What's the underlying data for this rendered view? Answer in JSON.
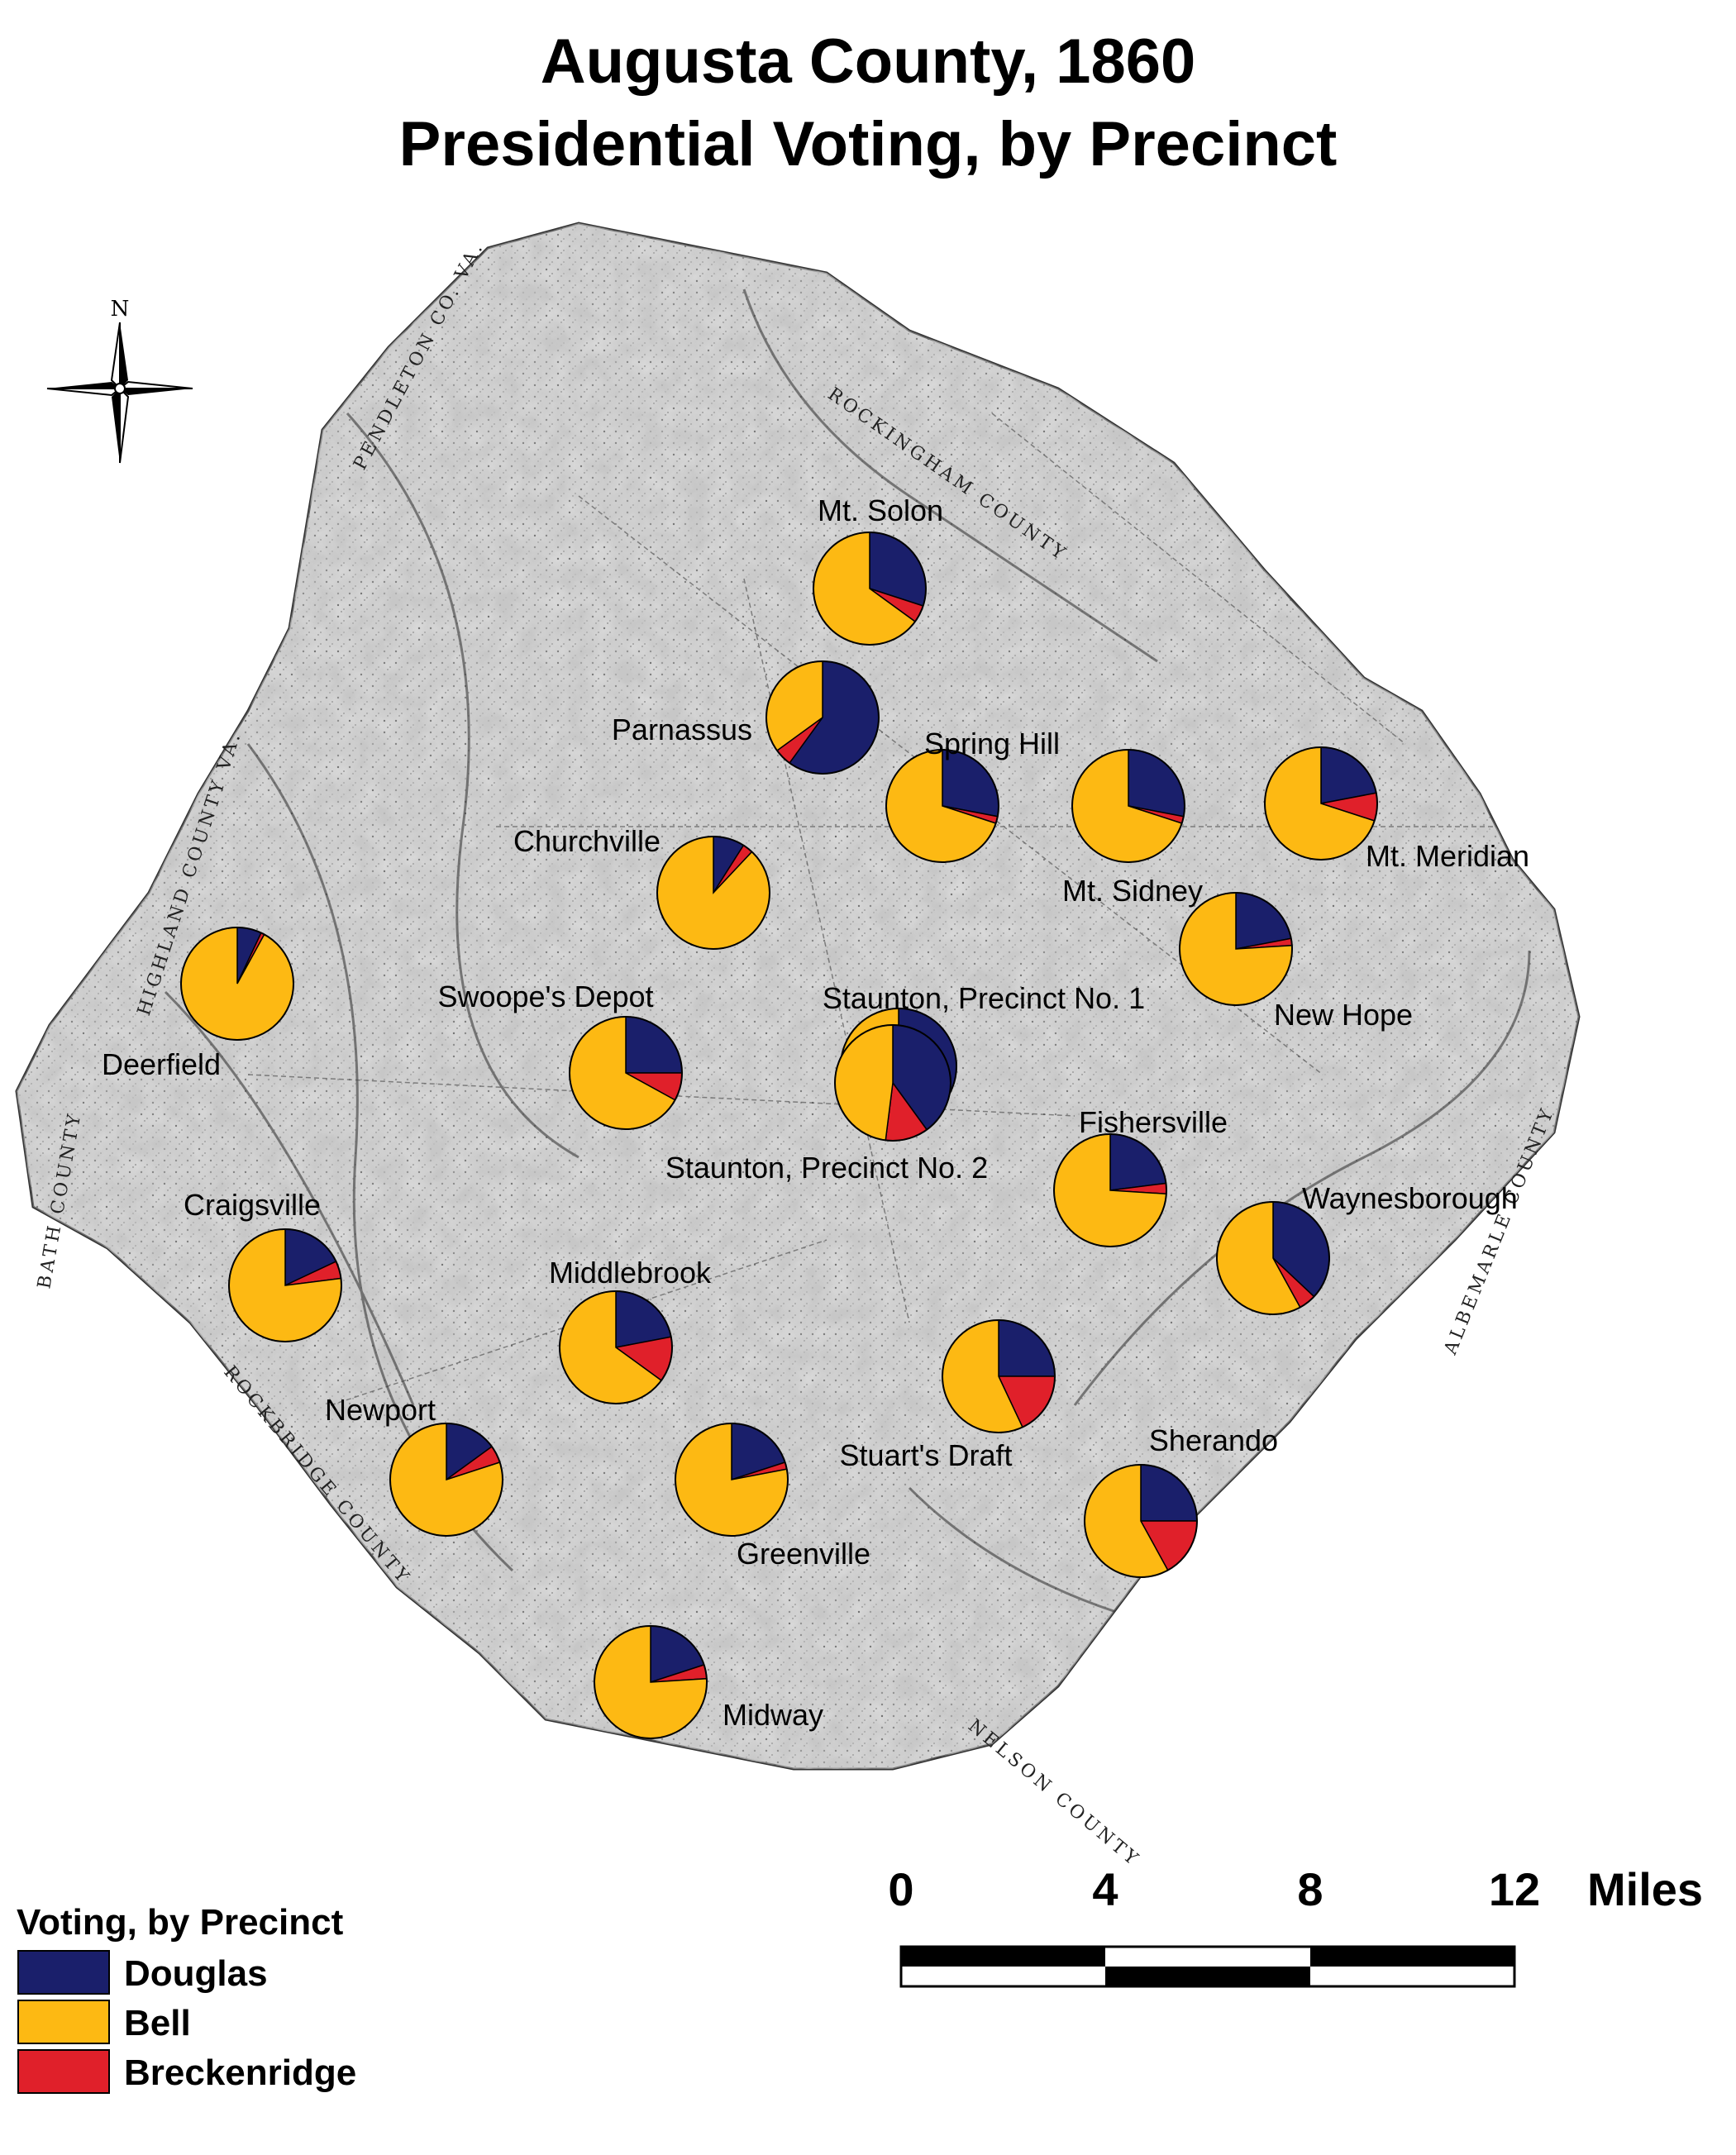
{
  "title": {
    "line1": "Augusta County, 1860",
    "line2": "Presidential Voting, by Precinct"
  },
  "compass": {
    "north_label": "N",
    "icon": "north-arrow-compass-icon"
  },
  "border_labels": {
    "pendleton": "PENDLETON CO. VA.",
    "highland": "HIGHLAND COUNTY VA.",
    "bath": "BATH COUNTY",
    "rockbridge": "ROCKBRIDGE COUNTY",
    "rockingham": "ROCKINGHAM COUNTY",
    "albemarle": "ALBEMARLE COUNTY",
    "nelson": "NELSON COUNTY"
  },
  "colors": {
    "douglas": "#1a1f6b",
    "bell": "#fdb913",
    "breckenridge": "#e0202a",
    "map_background": "#d9d9d9"
  },
  "legend": {
    "title": "Voting, by Precinct",
    "items": [
      {
        "key": "douglas",
        "label": "Douglas"
      },
      {
        "key": "bell",
        "label": "Bell"
      },
      {
        "key": "breckenridge",
        "label": "Breckenridge"
      }
    ]
  },
  "scale_bar": {
    "ticks": [
      "0",
      "4",
      "8",
      "12"
    ],
    "unit": "Miles"
  },
  "precincts": [
    {
      "name": "Mt. Solon",
      "douglas": 0.3,
      "bell": 0.65,
      "breckenridge": 0.05
    },
    {
      "name": "Parnassus",
      "douglas": 0.6,
      "bell": 0.35,
      "breckenridge": 0.05
    },
    {
      "name": "Spring Hill",
      "douglas": 0.28,
      "bell": 0.7,
      "breckenridge": 0.02
    },
    {
      "name": "Mt. Sidney",
      "douglas": 0.28,
      "bell": 0.7,
      "breckenridge": 0.02
    },
    {
      "name": "Mt. Meridian",
      "douglas": 0.22,
      "bell": 0.7,
      "breckenridge": 0.08
    },
    {
      "name": "Churchville",
      "douglas": 0.09,
      "bell": 0.88,
      "breckenridge": 0.03
    },
    {
      "name": "New Hope",
      "douglas": 0.22,
      "bell": 0.76,
      "breckenridge": 0.02
    },
    {
      "name": "Deerfield",
      "douglas": 0.07,
      "bell": 0.92,
      "breckenridge": 0.01
    },
    {
      "name": "Swoope's Depot",
      "douglas": 0.25,
      "bell": 0.67,
      "breckenridge": 0.08
    },
    {
      "name": "Staunton, Precinct No. 1",
      "douglas": 0.4,
      "bell": 0.48,
      "breckenridge": 0.12
    },
    {
      "name": "Staunton, Precinct No. 2",
      "douglas": 0.4,
      "bell": 0.48,
      "breckenridge": 0.12
    },
    {
      "name": "Fishersville",
      "douglas": 0.23,
      "bell": 0.74,
      "breckenridge": 0.03
    },
    {
      "name": "Waynesborough",
      "douglas": 0.37,
      "bell": 0.58,
      "breckenridge": 0.05
    },
    {
      "name": "Craigsville",
      "douglas": 0.18,
      "bell": 0.77,
      "breckenridge": 0.05
    },
    {
      "name": "Middlebrook",
      "douglas": 0.22,
      "bell": 0.65,
      "breckenridge": 0.13
    },
    {
      "name": "Stuart's Draft",
      "douglas": 0.25,
      "bell": 0.57,
      "breckenridge": 0.18
    },
    {
      "name": "Newport",
      "douglas": 0.15,
      "bell": 0.8,
      "breckenridge": 0.05
    },
    {
      "name": "Greenville",
      "douglas": 0.2,
      "bell": 0.78,
      "breckenridge": 0.02
    },
    {
      "name": "Sherando",
      "douglas": 0.25,
      "bell": 0.58,
      "breckenridge": 0.17
    },
    {
      "name": "Midway",
      "douglas": 0.2,
      "bell": 0.76,
      "breckenridge": 0.04
    }
  ]
}
